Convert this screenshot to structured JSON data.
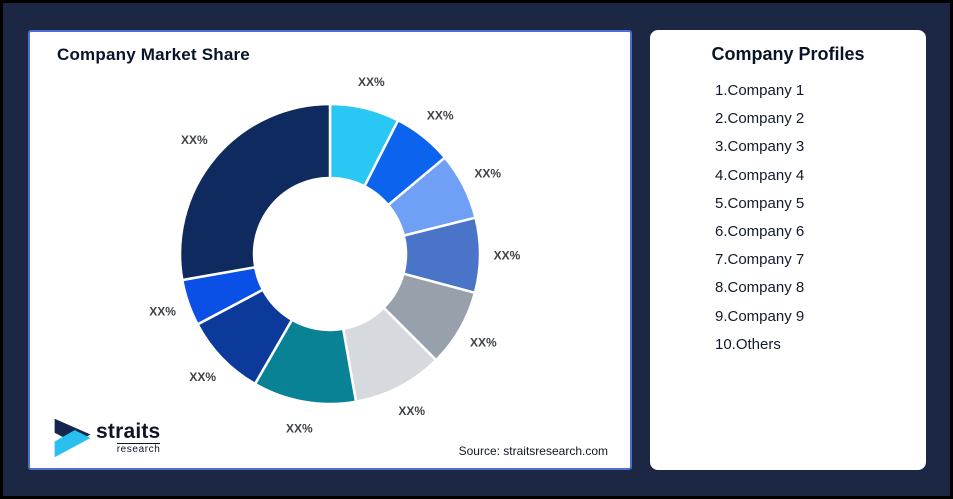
{
  "page": {
    "background_color": "#1C2744",
    "frame_border_color": "#000000"
  },
  "left_card": {
    "title": "Company Market Share",
    "border_color": "#4A6FD8",
    "source_note": "Source: straitsresearch.com",
    "logo": {
      "brand": "straits",
      "sub": "research",
      "mark_dark_color": "#12264F",
      "mark_cyan_color": "#29C0F0"
    }
  },
  "right_card": {
    "title": "Company Profiles",
    "items": [
      "1.Company 1",
      "2.Company 2",
      "3.Company 3",
      "4.Company 4",
      "5.Company 5",
      "6.Company 6",
      "7.Company 7",
      "8.Company 8",
      "9.Company 9",
      "10.Others"
    ]
  },
  "chart_data": {
    "type": "pie",
    "subtype": "donut",
    "title": "Company Market Share",
    "legend_position": "none",
    "value_label_placeholder": "XX%",
    "start_angle_deg": 0,
    "direction": "clockwise",
    "segments": [
      {
        "name": "Company 1",
        "label": "XX%",
        "color": "#29C7F4",
        "sweep_deg": 27,
        "approx_percent": 7.5
      },
      {
        "name": "Company 2",
        "label": "XX%",
        "color": "#0B63EE",
        "sweep_deg": 23,
        "approx_percent": 6.4
      },
      {
        "name": "Company 3",
        "label": "XX%",
        "color": "#6FA0F5",
        "sweep_deg": 26,
        "approx_percent": 7.2
      },
      {
        "name": "Company 4",
        "label": "XX%",
        "color": "#4A74C8",
        "sweep_deg": 29,
        "approx_percent": 8.1
      },
      {
        "name": "Company 5",
        "label": "XX%",
        "color": "#98A0AC",
        "sweep_deg": 30,
        "approx_percent": 8.3
      },
      {
        "name": "Company 6",
        "label": "XX%",
        "color": "#D6D9DE",
        "sweep_deg": 35,
        "approx_percent": 9.7
      },
      {
        "name": "Company 7",
        "label": "XX%",
        "color": "#0A8295",
        "sweep_deg": 40,
        "approx_percent": 11.1
      },
      {
        "name": "Company 8",
        "label": "XX%",
        "color": "#0B3A9B",
        "sweep_deg": 32,
        "approx_percent": 8.9
      },
      {
        "name": "Company 9",
        "label": "XX%",
        "color": "#0A50E6",
        "sweep_deg": 18,
        "approx_percent": 5.0
      },
      {
        "name": "Others",
        "label": "XX%",
        "color": "#0F2A5F",
        "sweep_deg": 100,
        "approx_percent": 27.8
      }
    ]
  }
}
